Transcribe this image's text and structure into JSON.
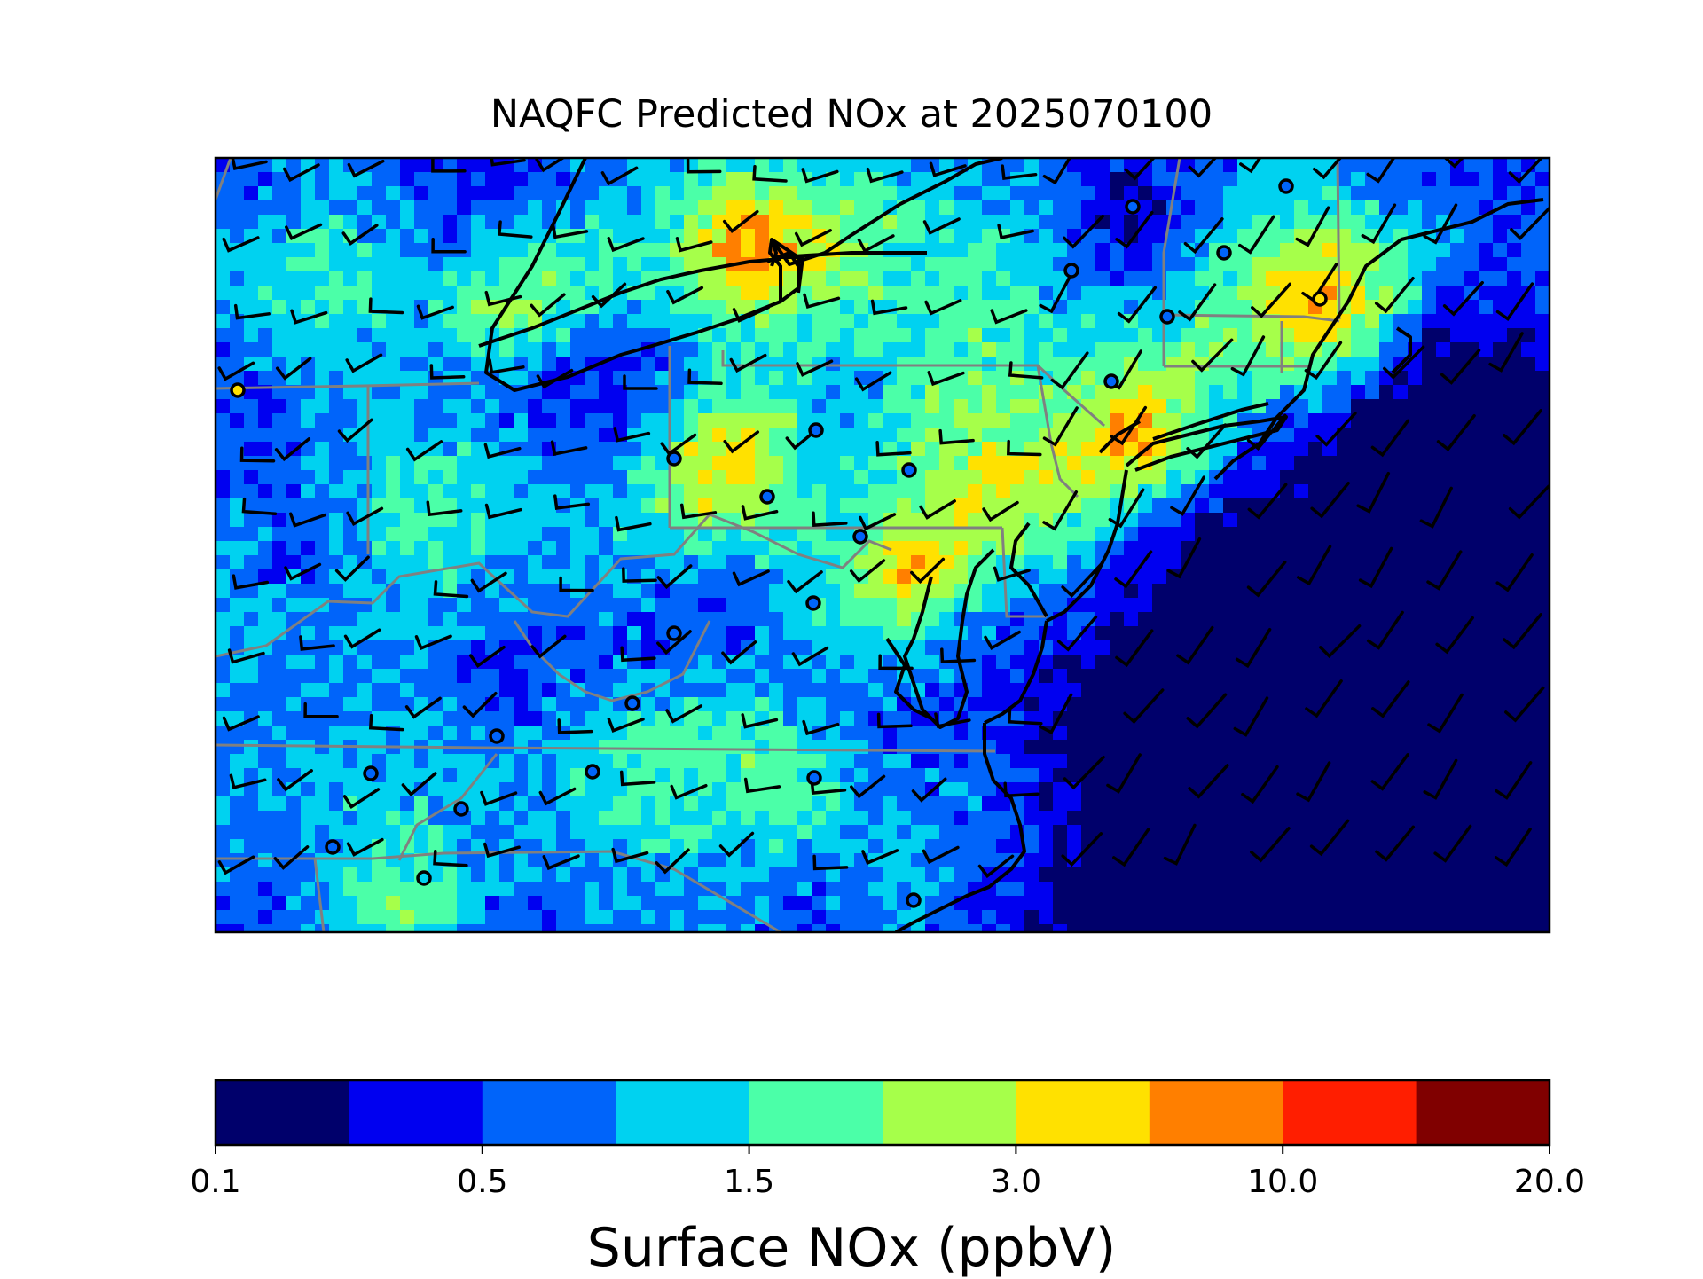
{
  "title": "NAQFC Predicted NOx at 2025070100",
  "colorbar": {
    "label": "Surface NOx (ppbV)",
    "tick_labels": [
      "0.1",
      "0.5",
      "1.5",
      "3.0",
      "10.0",
      "20.0"
    ],
    "colors": [
      "#00006b",
      "#0000f0",
      "#0064fa",
      "#00d2f0",
      "#4bffa8",
      "#a6ff4a",
      "#ffe100",
      "#ff7f00",
      "#ff1e00",
      "#800000"
    ]
  },
  "map": {
    "variable": "Surface NOx",
    "units": "ppbV",
    "region": "U.S. Mid-Atlantic and Northeast",
    "overlays": [
      "state-boundaries",
      "coastline",
      "wind-barbs",
      "observation-site-circles"
    ]
  }
}
